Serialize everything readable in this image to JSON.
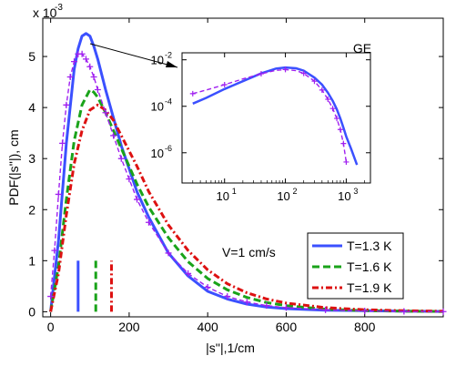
{
  "chart_data": [
    {
      "type": "line",
      "title": "",
      "xlabel": "|s''|,1/cm",
      "ylabel": "PDF(|s''|), cm",
      "exponent_label": "x 10",
      "exponent_power": "-3",
      "x_range": [
        -20,
        1000
      ],
      "y_range": [
        -0.1,
        5.75
      ],
      "x_ticks": [
        0,
        200,
        400,
        600,
        800
      ],
      "y_ticks": [
        0,
        1,
        2,
        3,
        4,
        5
      ],
      "x_tick_labels": [
        "0",
        "200",
        "400",
        "600",
        "800"
      ],
      "y_tick_labels": [
        "0",
        "1",
        "2",
        "3",
        "4",
        "5"
      ],
      "grid": false,
      "legend_position": "bottom-right",
      "annotation": "V=1 cm/s",
      "series": [
        {
          "name": "T=1.3 K",
          "color": "#3b50ff",
          "style": "solid",
          "x": [
            0,
            20,
            40,
            60,
            70,
            80,
            90,
            100,
            110,
            120,
            140,
            160,
            180,
            200,
            220,
            250,
            300,
            350,
            400,
            450,
            500,
            550,
            600,
            700,
            800,
            900,
            1000
          ],
          "y": [
            0,
            1.4,
            3.3,
            4.75,
            5.15,
            5.4,
            5.45,
            5.4,
            5.2,
            4.95,
            4.35,
            3.8,
            3.25,
            2.8,
            2.35,
            1.85,
            1.15,
            0.7,
            0.4,
            0.25,
            0.15,
            0.09,
            0.06,
            0.03,
            0.02,
            0.01,
            0.005
          ]
        },
        {
          "name": "T=1.6 K",
          "color": "#1aa31a",
          "style": "dashed",
          "x": [
            0,
            20,
            40,
            60,
            80,
            100,
            110,
            120,
            140,
            160,
            180,
            200,
            220,
            250,
            300,
            350,
            400,
            450,
            500,
            550,
            600,
            700,
            800,
            900,
            1000
          ],
          "y": [
            0,
            0.9,
            2.2,
            3.35,
            4.05,
            4.35,
            4.3,
            4.2,
            3.9,
            3.55,
            3.2,
            2.85,
            2.5,
            2.05,
            1.45,
            0.98,
            0.65,
            0.43,
            0.28,
            0.18,
            0.12,
            0.05,
            0.02,
            0.01,
            0.005
          ]
        },
        {
          "name": "T=1.9 K",
          "color": "#dd1111",
          "style": "dash-dot",
          "x": [
            0,
            20,
            40,
            60,
            80,
            100,
            120,
            140,
            160,
            180,
            200,
            220,
            250,
            300,
            350,
            400,
            450,
            500,
            550,
            600,
            700,
            800,
            900,
            1000
          ],
          "y": [
            0,
            0.75,
            1.9,
            2.9,
            3.55,
            3.95,
            4.05,
            3.95,
            3.75,
            3.45,
            3.15,
            2.85,
            2.35,
            1.7,
            1.2,
            0.82,
            0.55,
            0.37,
            0.25,
            0.17,
            0.08,
            0.04,
            0.02,
            0.01
          ]
        },
        {
          "name": "GE",
          "color": "#a020f0",
          "style": "dashed-plus",
          "x": [
            0,
            10,
            20,
            30,
            40,
            50,
            60,
            70,
            80,
            90,
            100,
            110,
            120,
            140,
            160,
            180,
            200,
            220,
            250,
            300,
            350,
            400,
            450,
            500,
            550,
            600,
            700,
            800,
            900,
            1000
          ],
          "y": [
            0.3,
            1.2,
            2.3,
            3.3,
            4.05,
            4.6,
            4.9,
            5.05,
            5.05,
            4.95,
            4.8,
            4.6,
            4.35,
            3.9,
            3.45,
            3.0,
            2.6,
            2.2,
            1.75,
            1.15,
            0.75,
            0.48,
            0.3,
            0.19,
            0.12,
            0.08,
            0.035,
            0.015,
            0.007,
            0.003
          ]
        }
      ],
      "vertical_markers": [
        {
          "series": "T=1.3 K",
          "x": 70,
          "y_top": 1.0
        },
        {
          "series": "T=1.6 K",
          "x": 115,
          "y_top": 1.0
        },
        {
          "series": "T=1.9 K",
          "x": 155,
          "y_top": 1.0
        }
      ]
    },
    {
      "type": "line",
      "title": "GE",
      "x_scale": "log",
      "y_scale": "log",
      "x_range": [
        2,
        2500
      ],
      "y_range": [
        5e-08,
        0.02
      ],
      "x_tick_labels": [
        {
          "base": "10",
          "exp": "1"
        },
        {
          "base": "10",
          "exp": "2"
        },
        {
          "base": "10",
          "exp": "3"
        }
      ],
      "y_tick_labels": [
        {
          "base": "10",
          "exp": "-2"
        },
        {
          "base": "10",
          "exp": "-4"
        },
        {
          "base": "10",
          "exp": "-6"
        }
      ],
      "grid": false,
      "series": [
        {
          "name": "T=1.3 K",
          "color": "#3b50ff",
          "style": "solid",
          "x": [
            3,
            5,
            10,
            20,
            40,
            70,
            100,
            150,
            200,
            300,
            400,
            500,
            600,
            700,
            800,
            900,
            1000,
            1200,
            1500
          ],
          "y": [
            0.00013,
            0.00023,
            0.00055,
            0.0012,
            0.0026,
            0.0042,
            0.0047,
            0.0043,
            0.0034,
            0.0017,
            0.00085,
            0.00038,
            0.00017,
            7.5e-05,
            3e-05,
            1.2e-05,
            5e-06,
            1.5e-06,
            3e-07
          ]
        },
        {
          "name": "GE",
          "color": "#a020f0",
          "style": "dashed-plus",
          "x": [
            3,
            5,
            10,
            20,
            40,
            70,
            100,
            150,
            200,
            300,
            400,
            500,
            600,
            700,
            800,
            900,
            1000
          ],
          "y": [
            0.00035,
            0.0005,
            0.00085,
            0.0015,
            0.0025,
            0.0035,
            0.0038,
            0.0034,
            0.0026,
            0.0012,
            0.0005,
            0.0002,
            8e-05,
            3e-05,
            1e-05,
            2.5e-06,
            4e-07
          ]
        }
      ]
    }
  ],
  "legend": {
    "entries": [
      {
        "label": "T=1.3 K",
        "color": "#3b50ff",
        "style": "solid"
      },
      {
        "label": "T=1.6 K",
        "color": "#1aa31a",
        "style": "dashed"
      },
      {
        "label": "T=1.9 K",
        "color": "#dd1111",
        "style": "dash-dot"
      }
    ]
  }
}
